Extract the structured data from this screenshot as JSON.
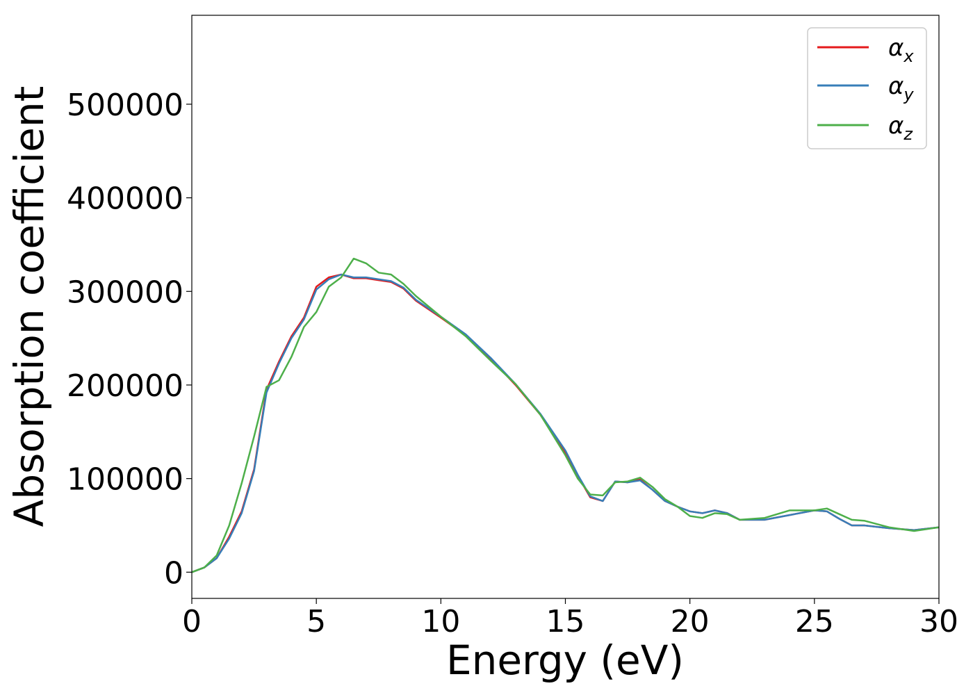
{
  "chart_data": {
    "type": "line",
    "xlabel": "Energy (eV)",
    "ylabel": "Absorption coefficient",
    "xlim": [
      0,
      30
    ],
    "ylim": [
      -28000,
      595000
    ],
    "xticks": [
      0,
      5,
      10,
      15,
      20,
      25,
      30
    ],
    "xtick_labels": [
      "0",
      "5",
      "10",
      "15",
      "20",
      "25",
      "30"
    ],
    "yticks": [
      0,
      100000,
      200000,
      300000,
      400000,
      500000
    ],
    "ytick_labels": [
      "0",
      "100000",
      "200000",
      "300000",
      "400000",
      "500000"
    ],
    "grid": false,
    "legend_position": "top-right",
    "series": [
      {
        "name": "α",
        "subscript": "x",
        "color": "#e41a1c",
        "x": [
          0,
          0.5,
          1.0,
          1.5,
          2.0,
          2.5,
          3.0,
          3.5,
          4.0,
          4.5,
          5.0,
          5.5,
          6.0,
          6.5,
          7.0,
          7.5,
          8.0,
          8.5,
          9.0,
          10.0,
          11.0,
          12.0,
          13.0,
          14.0,
          15.0,
          15.5,
          16.0,
          16.5,
          17.0,
          17.5,
          18.0,
          18.5,
          19.0,
          19.5,
          20.0,
          20.5,
          21.0,
          21.5,
          22.0,
          23.0,
          24.0,
          25.0,
          25.5,
          26.0,
          26.5,
          27.0,
          28.0,
          29.0,
          30.0
        ],
        "y": [
          0,
          5000,
          15000,
          38000,
          65000,
          110000,
          195000,
          225000,
          252000,
          272000,
          305000,
          315000,
          318000,
          314000,
          314000,
          312000,
          310000,
          303000,
          290000,
          272000,
          253000,
          228000,
          200000,
          168000,
          128000,
          103000,
          80000,
          76000,
          97000,
          96000,
          99000,
          88000,
          76000,
          70000,
          65000,
          63000,
          66000,
          63000,
          56000,
          56000,
          61000,
          66000,
          65000,
          57000,
          50000,
          50000,
          47000,
          45000,
          48000
        ]
      },
      {
        "name": "α",
        "subscript": "y",
        "color": "#377eb8",
        "x": [
          0,
          0.5,
          1.0,
          1.5,
          2.0,
          2.5,
          3.0,
          3.5,
          4.0,
          4.5,
          5.0,
          5.5,
          6.0,
          6.5,
          7.0,
          7.5,
          8.0,
          8.5,
          9.0,
          10.0,
          11.0,
          12.0,
          13.0,
          14.0,
          15.0,
          15.5,
          16.0,
          16.5,
          17.0,
          17.5,
          18.0,
          18.5,
          19.0,
          19.5,
          20.0,
          20.5,
          21.0,
          21.5,
          22.0,
          23.0,
          24.0,
          25.0,
          25.5,
          26.0,
          26.5,
          27.0,
          28.0,
          29.0,
          30.0
        ],
        "y": [
          0,
          5000,
          15000,
          36000,
          63000,
          108000,
          192000,
          223000,
          250000,
          270000,
          302000,
          313000,
          318000,
          315000,
          315000,
          313000,
          311000,
          304000,
          291000,
          273000,
          254000,
          229000,
          201000,
          169000,
          130000,
          104000,
          81000,
          76000,
          97000,
          96000,
          98000,
          88000,
          76000,
          70000,
          65000,
          63000,
          66000,
          63000,
          56000,
          56000,
          61000,
          66000,
          65000,
          57000,
          50000,
          50000,
          47000,
          45000,
          48000
        ]
      },
      {
        "name": "α",
        "subscript": "z",
        "color": "#4daf4a",
        "x": [
          0,
          0.5,
          1.0,
          1.5,
          2.0,
          2.5,
          3.0,
          3.5,
          4.0,
          4.5,
          5.0,
          5.5,
          6.0,
          6.5,
          7.0,
          7.5,
          8.0,
          8.5,
          9.0,
          10.0,
          11.0,
          12.0,
          13.0,
          14.0,
          15.0,
          15.5,
          16.0,
          16.5,
          17.0,
          17.5,
          18.0,
          18.5,
          19.0,
          19.5,
          20.0,
          20.5,
          21.0,
          21.5,
          22.0,
          23.0,
          24.0,
          25.0,
          25.5,
          26.0,
          26.5,
          27.0,
          28.0,
          29.0,
          30.0
        ],
        "y": [
          0,
          5000,
          18000,
          50000,
          95000,
          145000,
          198000,
          205000,
          230000,
          262000,
          278000,
          305000,
          315000,
          335000,
          330000,
          320000,
          318000,
          308000,
          295000,
          273000,
          252000,
          226000,
          201000,
          168000,
          125000,
          100000,
          83000,
          82000,
          96000,
          97000,
          101000,
          91000,
          78000,
          70000,
          60000,
          58000,
          63000,
          62000,
          56000,
          58000,
          66000,
          66000,
          68000,
          62000,
          56000,
          55000,
          48000,
          44000,
          48000
        ]
      }
    ]
  }
}
